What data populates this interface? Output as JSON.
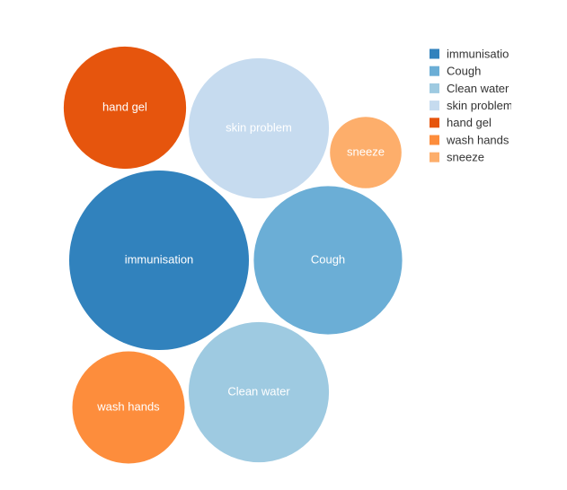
{
  "chart_data": {
    "type": "bubble",
    "title": "",
    "legend_position": "top-right",
    "items": [
      {
        "label": "immunisation",
        "legend_label": "immunisatio",
        "value": 41,
        "color": "#3182bd"
      },
      {
        "label": "Cough",
        "legend_label": "Cough",
        "value": 28,
        "color": "#6baed6"
      },
      {
        "label": "Clean water",
        "legend_label": "Clean water",
        "value": 25,
        "color": "#9ecae1"
      },
      {
        "label": "skin problem",
        "legend_label": "skin problem",
        "value": 25,
        "color": "#c6dbef"
      },
      {
        "label": "hand gel",
        "legend_label": "hand gel",
        "value": 19,
        "color": "#e6550d"
      },
      {
        "label": "wash hands",
        "legend_label": "wash hands",
        "value": 16,
        "color": "#fd8d3c"
      },
      {
        "label": "sneeze",
        "legend_label": "sneeze",
        "value": 6.5,
        "color": "#fdae6b"
      }
    ]
  }
}
